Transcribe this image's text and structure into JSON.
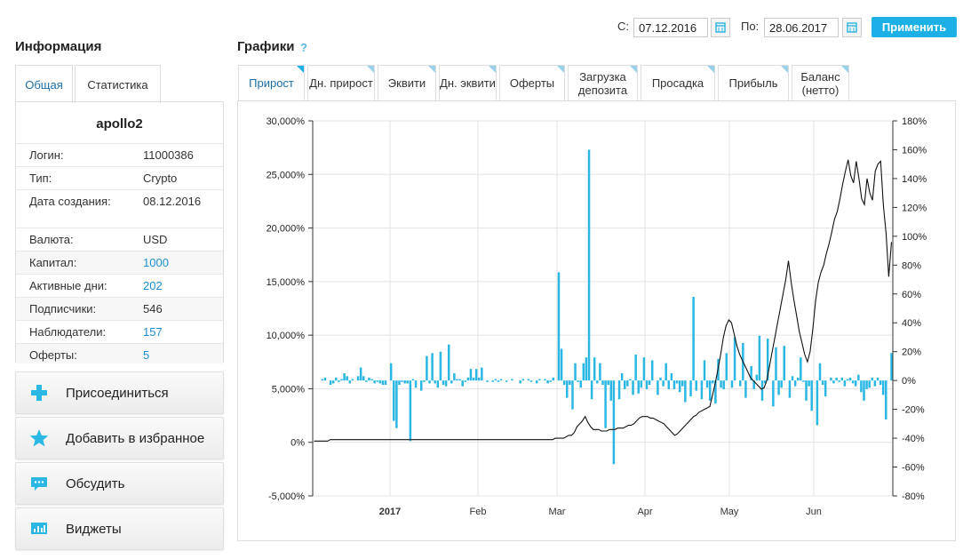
{
  "info": {
    "title": "Информация",
    "tabs": [
      "Общая",
      "Статистика"
    ],
    "name": "apollo2",
    "rows": [
      {
        "key": "Логин:",
        "value": "11000386",
        "link": false
      },
      {
        "key": "Тип:",
        "value": "Crypto",
        "link": false
      },
      {
        "key": "Дата создания:",
        "value": "08.12.2016",
        "link": false
      },
      {
        "key": "Валюта:",
        "value": "USD",
        "link": false
      },
      {
        "key": "Капитал:",
        "value": "1000",
        "link": true
      },
      {
        "key": "Активные дни:",
        "value": "202",
        "link": true
      },
      {
        "key": "Подписчики:",
        "value": "546",
        "link": false
      },
      {
        "key": "Наблюдатели:",
        "value": "157",
        "link": true
      },
      {
        "key": "Оферты:",
        "value": "5",
        "link": true
      }
    ],
    "actions": [
      {
        "label": "Присоединиться",
        "icon": "plus-icon"
      },
      {
        "label": "Добавить в избранное",
        "icon": "star-icon"
      },
      {
        "label": "Обсудить",
        "icon": "chat-bubble-icon"
      },
      {
        "label": "Виджеты",
        "icon": "widget-chart-icon"
      }
    ]
  },
  "charts": {
    "title": "Графики",
    "help": "?",
    "from_label": "С:",
    "from_value": "07.12.2016",
    "to_label": "По:",
    "to_value": "28.06.2017",
    "apply_label": "Применить",
    "tabs": [
      "Прирост",
      "Дн. прирост",
      "Эквити",
      "Дн. эквити",
      "Оферты",
      "Загрузка депозита",
      "Просадка",
      "Прибыль",
      "Баланс (нетто)"
    ],
    "active_tab": 0
  },
  "colors": {
    "accent": "#1db0e6",
    "bar": "#2ab7e3",
    "line": "#111111",
    "link": "#1a8fd1"
  },
  "chart_data": {
    "type": "bar",
    "x_tick_labels": [
      "2017",
      "Feb",
      "Mar",
      "Apr",
      "May",
      "Jun"
    ],
    "left_axis": {
      "ticks": [
        "30,000%",
        "25,000%",
        "20,000%",
        "15,000%",
        "10,000%",
        "5,000%",
        "0%",
        "-5,000%"
      ],
      "ylim": [
        -5000,
        30000
      ]
    },
    "right_axis": {
      "ticks": [
        "180%",
        "160%",
        "140%",
        "120%",
        "100%",
        "80%",
        "60%",
        "40%",
        "20%",
        "0%",
        "-20%",
        "-40%",
        "-60%",
        "-80%"
      ],
      "ylim": [
        -80,
        180
      ]
    },
    "grid": true,
    "series": [
      {
        "axis": "right",
        "type": "bar",
        "values": [
          0,
          0,
          0,
          1,
          2,
          0,
          -3,
          -2,
          2,
          -1,
          1,
          5,
          3,
          -2,
          1,
          0,
          3,
          9,
          3,
          -1,
          2,
          1,
          -2,
          -1,
          -2,
          -3,
          -3,
          0,
          12,
          -28,
          -33,
          -3,
          -1,
          -2,
          -2,
          -42,
          1,
          -5,
          0,
          -7,
          -1,
          17,
          -2,
          19,
          -2,
          -5,
          20,
          -3,
          -4,
          25,
          -2,
          5,
          1,
          1,
          -4,
          -1,
          2,
          8,
          2,
          8,
          2,
          9,
          0,
          -1,
          0,
          -1,
          1,
          -1,
          1,
          0,
          -1,
          0,
          1,
          0,
          0,
          -2,
          1,
          0,
          1,
          -1,
          0,
          -2,
          1,
          0,
          1,
          -2,
          -1,
          2,
          0,
          75,
          22,
          -3,
          -12,
          -3,
          -20,
          12,
          -1,
          -5,
          12,
          16,
          160,
          -13,
          16,
          -2,
          12,
          -3,
          -33,
          -3,
          -14,
          -58,
          0,
          -13,
          5,
          -6,
          -4,
          1,
          -10,
          18,
          -9,
          -5,
          16,
          -6,
          -3,
          14,
          0,
          -10,
          2,
          -4,
          12,
          -6,
          5,
          -6,
          -2,
          -8,
          -4,
          -15,
          0,
          -11,
          58,
          -7,
          0,
          -13,
          14,
          -5,
          -14,
          -2,
          -16,
          15,
          -5,
          -6,
          19,
          0,
          -5,
          30,
          0,
          -4,
          26,
          -12,
          0,
          10,
          -6,
          4,
          31,
          -14,
          -2,
          29,
          0,
          -18,
          23,
          -10,
          -5,
          24,
          0,
          -12,
          3,
          -4,
          2,
          16,
          -1,
          -14,
          -4,
          -21,
          0,
          -31,
          12,
          -3,
          -11,
          0,
          2,
          -2,
          2,
          -1,
          2,
          -4,
          1,
          2,
          -2,
          -4,
          4,
          -8,
          -14,
          -6,
          -5,
          2,
          -4,
          2,
          -3,
          -10,
          -27,
          0,
          19
        ]
      },
      {
        "axis": "right",
        "type": "line",
        "values": [
          -42,
          -42,
          -42,
          -42,
          -42,
          -42,
          -41,
          -41,
          -41,
          -41,
          -41,
          -41,
          -41,
          -41,
          -41,
          -41,
          -41,
          -41,
          -41,
          -41,
          -41,
          -41,
          -41,
          -41,
          -41,
          -41,
          -41,
          -41,
          -41,
          -41,
          -41,
          -41,
          -41,
          -41,
          -41,
          -41,
          -41,
          -41,
          -41,
          -41,
          -41,
          -41,
          -41,
          -41,
          -41,
          -41,
          -41,
          -41,
          -41,
          -41,
          -41,
          -41,
          -41,
          -41,
          -41,
          -41,
          -41,
          -41,
          -41,
          -41,
          -41,
          -41,
          -41,
          -41,
          -41,
          -41,
          -41,
          -41,
          -41,
          -41,
          -41,
          -41,
          -41,
          -41,
          -41,
          -41,
          -41,
          -41,
          -41,
          -41,
          -41,
          -41,
          -41,
          -41,
          -41,
          -41,
          -41,
          -41,
          -41,
          -40,
          -40,
          -40,
          -40,
          -39,
          -38,
          -38,
          -36,
          -32,
          -30,
          -28,
          -25,
          -29,
          -32,
          -34,
          -34,
          -34,
          -35,
          -35,
          -35,
          -34,
          -34,
          -34,
          -33,
          -33,
          -33,
          -32,
          -31,
          -31,
          -30,
          -28,
          -26,
          -25,
          -25,
          -25,
          -26,
          -26,
          -27,
          -28,
          -29,
          -30,
          -32,
          -34,
          -36,
          -38,
          -37,
          -35,
          -33,
          -31,
          -29,
          -27,
          -25,
          -24,
          -22,
          -21,
          -20,
          -19,
          -18,
          -10,
          -2,
          8,
          18,
          30,
          38,
          42,
          40,
          32,
          24,
          18,
          14,
          10,
          6,
          2,
          0,
          -2,
          -4,
          -6,
          -5,
          0,
          10,
          20,
          30,
          40,
          50,
          60,
          70,
          83,
          68,
          56,
          45,
          34,
          26,
          18,
          13,
          20,
          36,
          55,
          68,
          75,
          80,
          88,
          95,
          103,
          112,
          117,
          126,
          136,
          145,
          153,
          142,
          137,
          152,
          140,
          126,
          122,
          140,
          130,
          125,
          145,
          150,
          152,
          122,
          102,
          72,
          96
        ]
      }
    ]
  }
}
